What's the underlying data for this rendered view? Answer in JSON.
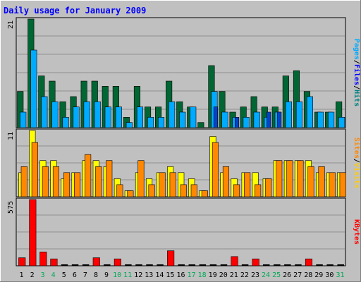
{
  "chart_data": {
    "type": "bar",
    "title": "Daily usage for January 2009",
    "categories": [
      "1",
      "2",
      "3",
      "4",
      "5",
      "6",
      "7",
      "8",
      "9",
      "10",
      "11",
      "12",
      "13",
      "14",
      "15",
      "16",
      "17",
      "18",
      "19",
      "20",
      "21",
      "22",
      "23",
      "24",
      "25",
      "26",
      "27",
      "28",
      "29",
      "30",
      "31"
    ],
    "weekend_days": [
      "3",
      "4",
      "10",
      "11",
      "17",
      "18",
      "24",
      "25",
      "31"
    ],
    "panels": [
      {
        "id": "hits",
        "ytick": "21",
        "ymax": 21,
        "label_parts": [
          "Pages",
          "/",
          "Files",
          "/",
          "Hits"
        ],
        "series": [
          {
            "name": "Hits",
            "color": "#006633",
            "values": [
              7,
              21,
              10,
              9,
              5,
              6,
              9,
              9,
              8,
              8,
              2,
              8,
              4,
              4,
              9,
              5,
              4,
              1,
              12,
              7,
              3,
              4,
              6,
              4,
              4,
              10,
              11,
              7,
              3,
              3,
              5
            ]
          },
          {
            "name": "Files",
            "color": "#00aaff",
            "values": [
              3,
              15,
              6,
              5,
              2,
              4,
              5,
              5,
              4,
              4,
              1,
              4,
              2,
              2,
              5,
              3,
              4,
              0,
              7,
              3,
              2,
              2,
              3,
              2,
              3,
              5,
              5,
              6,
              3,
              3,
              2
            ]
          },
          {
            "name": "Pages",
            "color": "#0044cc",
            "values": [
              0,
              0,
              0,
              0,
              0,
              0,
              0,
              0,
              0,
              0,
              0,
              0,
              0,
              0,
              0,
              0,
              0,
              0,
              4,
              0,
              2,
              0,
              0,
              3,
              3,
              0,
              0,
              0,
              0,
              0,
              0
            ]
          }
        ]
      },
      {
        "id": "visits",
        "ytick": "11",
        "ymax": 11,
        "label_parts": [
          "Sites",
          "/",
          "Visits"
        ],
        "series": [
          {
            "name": "Visits",
            "color": "#ffff00",
            "values": [
              4,
              11,
              6,
              6,
              3,
              4,
              6,
              6,
              5,
              3,
              1,
              4,
              3,
              4,
              5,
              4,
              3,
              1,
              10,
              4,
              3,
              4,
              4,
              3,
              6,
              6,
              6,
              6,
              4,
              4,
              4
            ]
          },
          {
            "name": "Sites",
            "color": "#ff8800",
            "values": [
              5,
              9,
              5,
              5,
              4,
              4,
              7,
              5,
              6,
              2,
              1,
              6,
              2,
              4,
              4,
              2,
              2,
              1,
              9,
              5,
              2,
              4,
              2,
              3,
              6,
              6,
              6,
              5,
              5,
              4,
              4
            ]
          }
        ]
      },
      {
        "id": "kbytes",
        "ytick": "575",
        "ymax": 575,
        "label_parts": [
          "KBytes"
        ],
        "series": [
          {
            "name": "KBytes",
            "color": "#ff0000",
            "values": [
              70,
              575,
              120,
              60,
              0,
              0,
              0,
              70,
              0,
              60,
              0,
              0,
              0,
              0,
              130,
              0,
              0,
              0,
              0,
              0,
              80,
              0,
              60,
              0,
              0,
              0,
              0,
              60,
              0,
              0,
              0
            ]
          }
        ]
      }
    ],
    "colors": {
      "panel_bg": "#c0c0c0",
      "grid": "#808080",
      "title": "#0000ff",
      "weekday_label": "#000000",
      "weekend_label": "#00aa55",
      "sep_label": "#000000",
      "axis_label_colors": {
        "Hits": "#008080",
        "Files": "#0000ff",
        "Pages": "#00aaff",
        "Visits": "#ffcc00",
        "Sites": "#ff8800",
        "KBytes": "#ff0000"
      }
    }
  }
}
